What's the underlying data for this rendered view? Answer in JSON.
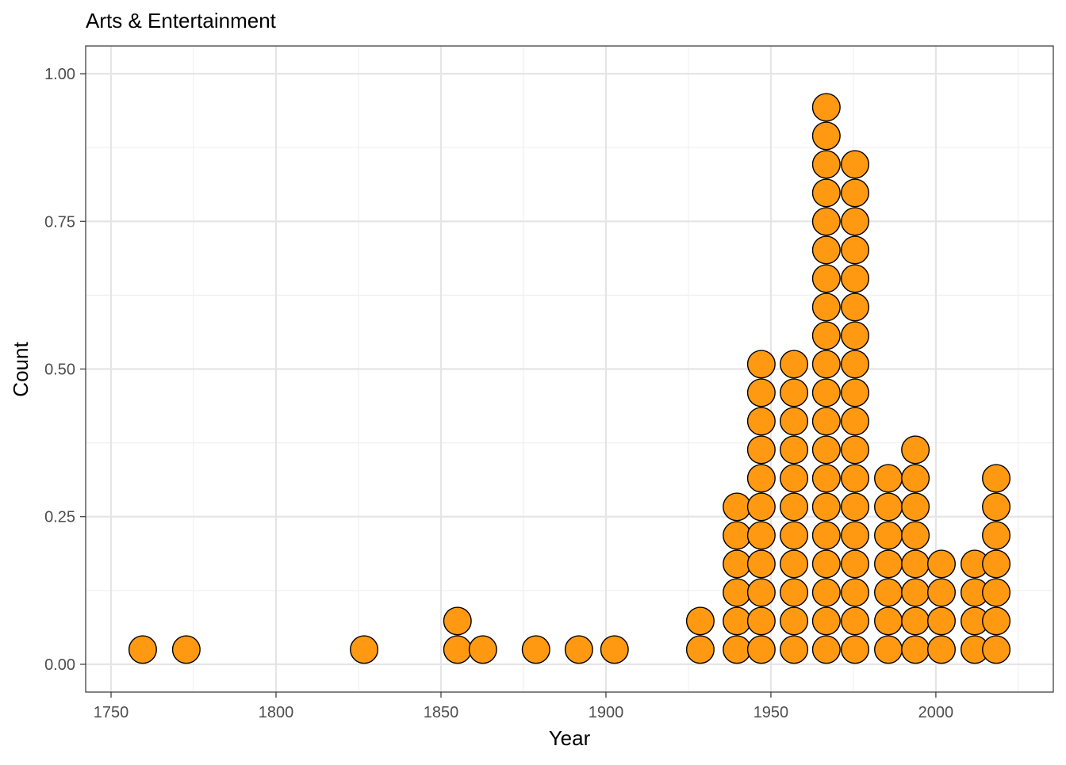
{
  "chart_data": {
    "type": "dotplot",
    "title": "Arts & Entertainment",
    "xlabel": "Year",
    "ylabel": "Count",
    "xlim": [
      1742.3,
      2035.6
    ],
    "ylim": [
      -0.047,
      1.047
    ],
    "x_ticks": [
      1750,
      1800,
      1850,
      1900,
      1950,
      2000
    ],
    "x_tick_labels": [
      "1750",
      "1800",
      "1850",
      "1900",
      "1950",
      "2000"
    ],
    "y_ticks": [
      0,
      0.25,
      0.5,
      0.75,
      1.0
    ],
    "y_tick_labels": [
      "0.00",
      "0.25",
      "0.50",
      "0.75",
      "1.00"
    ],
    "grid": true,
    "dot_fill": "#FF9912",
    "dot_stroke": "#000000",
    "stacks": [
      {
        "x": 1759.6,
        "count": 1
      },
      {
        "x": 1772.8,
        "count": 1
      },
      {
        "x": 1826.7,
        "count": 1
      },
      {
        "x": 1855.0,
        "count": 2
      },
      {
        "x": 1862.7,
        "count": 1
      },
      {
        "x": 1878.8,
        "count": 1
      },
      {
        "x": 1891.8,
        "count": 1
      },
      {
        "x": 1902.6,
        "count": 1
      },
      {
        "x": 1928.6,
        "count": 2
      },
      {
        "x": 1939.7,
        "count": 6
      },
      {
        "x": 1947.1,
        "count": 11
      },
      {
        "x": 1957.0,
        "count": 11
      },
      {
        "x": 1966.8,
        "count": 20
      },
      {
        "x": 1975.5,
        "count": 18
      },
      {
        "x": 1985.6,
        "count": 7
      },
      {
        "x": 1993.8,
        "count": 8
      },
      {
        "x": 2001.7,
        "count": 4
      },
      {
        "x": 2011.8,
        "count": 4
      },
      {
        "x": 2018.3,
        "count": 7
      }
    ]
  }
}
